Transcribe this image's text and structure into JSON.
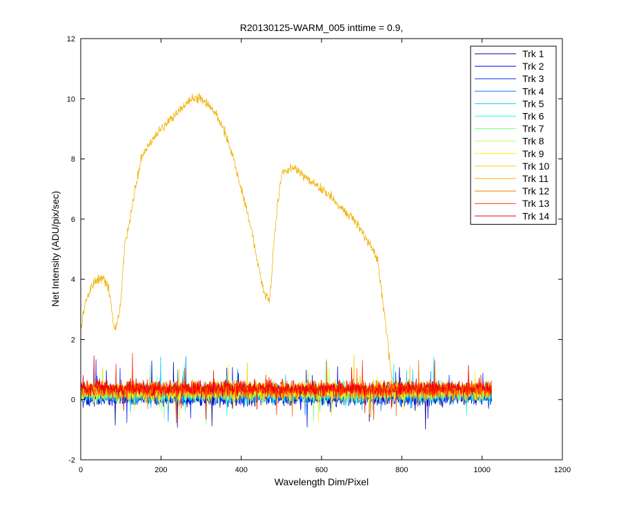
{
  "chart_data": {
    "type": "line",
    "title": "R20130125-WARM_005 inttime = 0.9,",
    "xlabel": "Wavelength Dim/Pixel",
    "ylabel": "Net Intensity (ADU/pix/sec)",
    "xlim": [
      0,
      1200
    ],
    "ylim": [
      -2,
      12
    ],
    "xticks": [
      0,
      200,
      400,
      600,
      800,
      1000,
      1200
    ],
    "yticks": [
      -2,
      0,
      2,
      4,
      6,
      8,
      10,
      12
    ],
    "grid": false,
    "legend_position": "top-right",
    "x_range_all_series": [
      1,
      1024
    ],
    "series": [
      {
        "name": "Trk 1",
        "color": "#00008F",
        "kind": "noise",
        "mean": 0.1,
        "spread": 0.45
      },
      {
        "name": "Trk 2",
        "color": "#0000DF",
        "kind": "noise",
        "mean": 0.12,
        "spread": 0.45
      },
      {
        "name": "Trk 3",
        "color": "#0030FF",
        "kind": "noise",
        "mean": 0.15,
        "spread": 0.45
      },
      {
        "name": "Trk 4",
        "color": "#0080FF",
        "kind": "noise",
        "mean": 0.18,
        "spread": 0.45
      },
      {
        "name": "Trk 5",
        "color": "#00CFFF",
        "kind": "noise",
        "mean": 0.2,
        "spread": 0.45
      },
      {
        "name": "Trk 6",
        "color": "#20FFDF",
        "kind": "noise",
        "mean": 0.22,
        "spread": 0.45
      },
      {
        "name": "Trk 7",
        "color": "#70FF8F",
        "kind": "noise",
        "mean": 0.25,
        "spread": 0.45
      },
      {
        "name": "Trk 8",
        "color": "#BFFF40",
        "kind": "noise",
        "mean": 0.27,
        "spread": 0.45
      },
      {
        "name": "Trk 9",
        "color": "#FFEF00",
        "kind": "noise",
        "mean": 0.28,
        "spread": 0.45
      },
      {
        "name": "Trk 10",
        "color": "#FFCF00",
        "kind": "noise",
        "mean": 0.28,
        "spread": 0.45
      },
      {
        "name": "Trk 11",
        "color": "#F0B000",
        "kind": "spectrum",
        "spread": 0.35,
        "x": [
          1,
          10,
          20,
          30,
          40,
          50,
          55,
          60,
          70,
          75,
          80,
          85,
          90,
          95,
          100,
          105,
          110,
          120,
          130,
          140,
          150,
          170,
          200,
          230,
          260,
          280,
          300,
          320,
          340,
          360,
          380,
          400,
          420,
          440,
          455,
          465,
          470,
          475,
          480,
          490,
          500,
          520,
          540,
          560,
          580,
          600,
          620,
          640,
          660,
          680,
          700,
          720,
          740,
          750,
          755,
          760,
          765,
          770,
          775,
          780,
          790,
          800,
          820,
          900,
          1000,
          1024
        ],
        "y": [
          2.4,
          3.1,
          3.5,
          3.8,
          3.95,
          4.0,
          4.1,
          3.95,
          3.7,
          3.3,
          2.6,
          2.4,
          2.5,
          2.8,
          3.2,
          4.2,
          5.2,
          5.8,
          6.6,
          7.3,
          8.0,
          8.5,
          9.0,
          9.4,
          9.8,
          10.1,
          10.0,
          9.8,
          9.4,
          8.9,
          8.0,
          7.0,
          6.0,
          4.6,
          3.7,
          3.4,
          3.3,
          4.0,
          5.0,
          6.5,
          7.5,
          7.7,
          7.6,
          7.4,
          7.2,
          7.0,
          6.8,
          6.5,
          6.2,
          6.0,
          5.6,
          5.2,
          4.6,
          3.5,
          3.0,
          2.5,
          2.0,
          1.2,
          0.8,
          0.5,
          0.4,
          0.35,
          0.35,
          0.35,
          0.35,
          0.35
        ]
      },
      {
        "name": "Trk 12",
        "color": "#FF7000",
        "kind": "noise",
        "mean": 0.32,
        "spread": 0.4
      },
      {
        "name": "Trk 13",
        "color": "#FF3000",
        "kind": "noise",
        "mean": 0.35,
        "spread": 0.4
      },
      {
        "name": "Trk 14",
        "color": "#EF0000",
        "kind": "noise",
        "mean": 0.38,
        "spread": 0.4
      }
    ]
  }
}
